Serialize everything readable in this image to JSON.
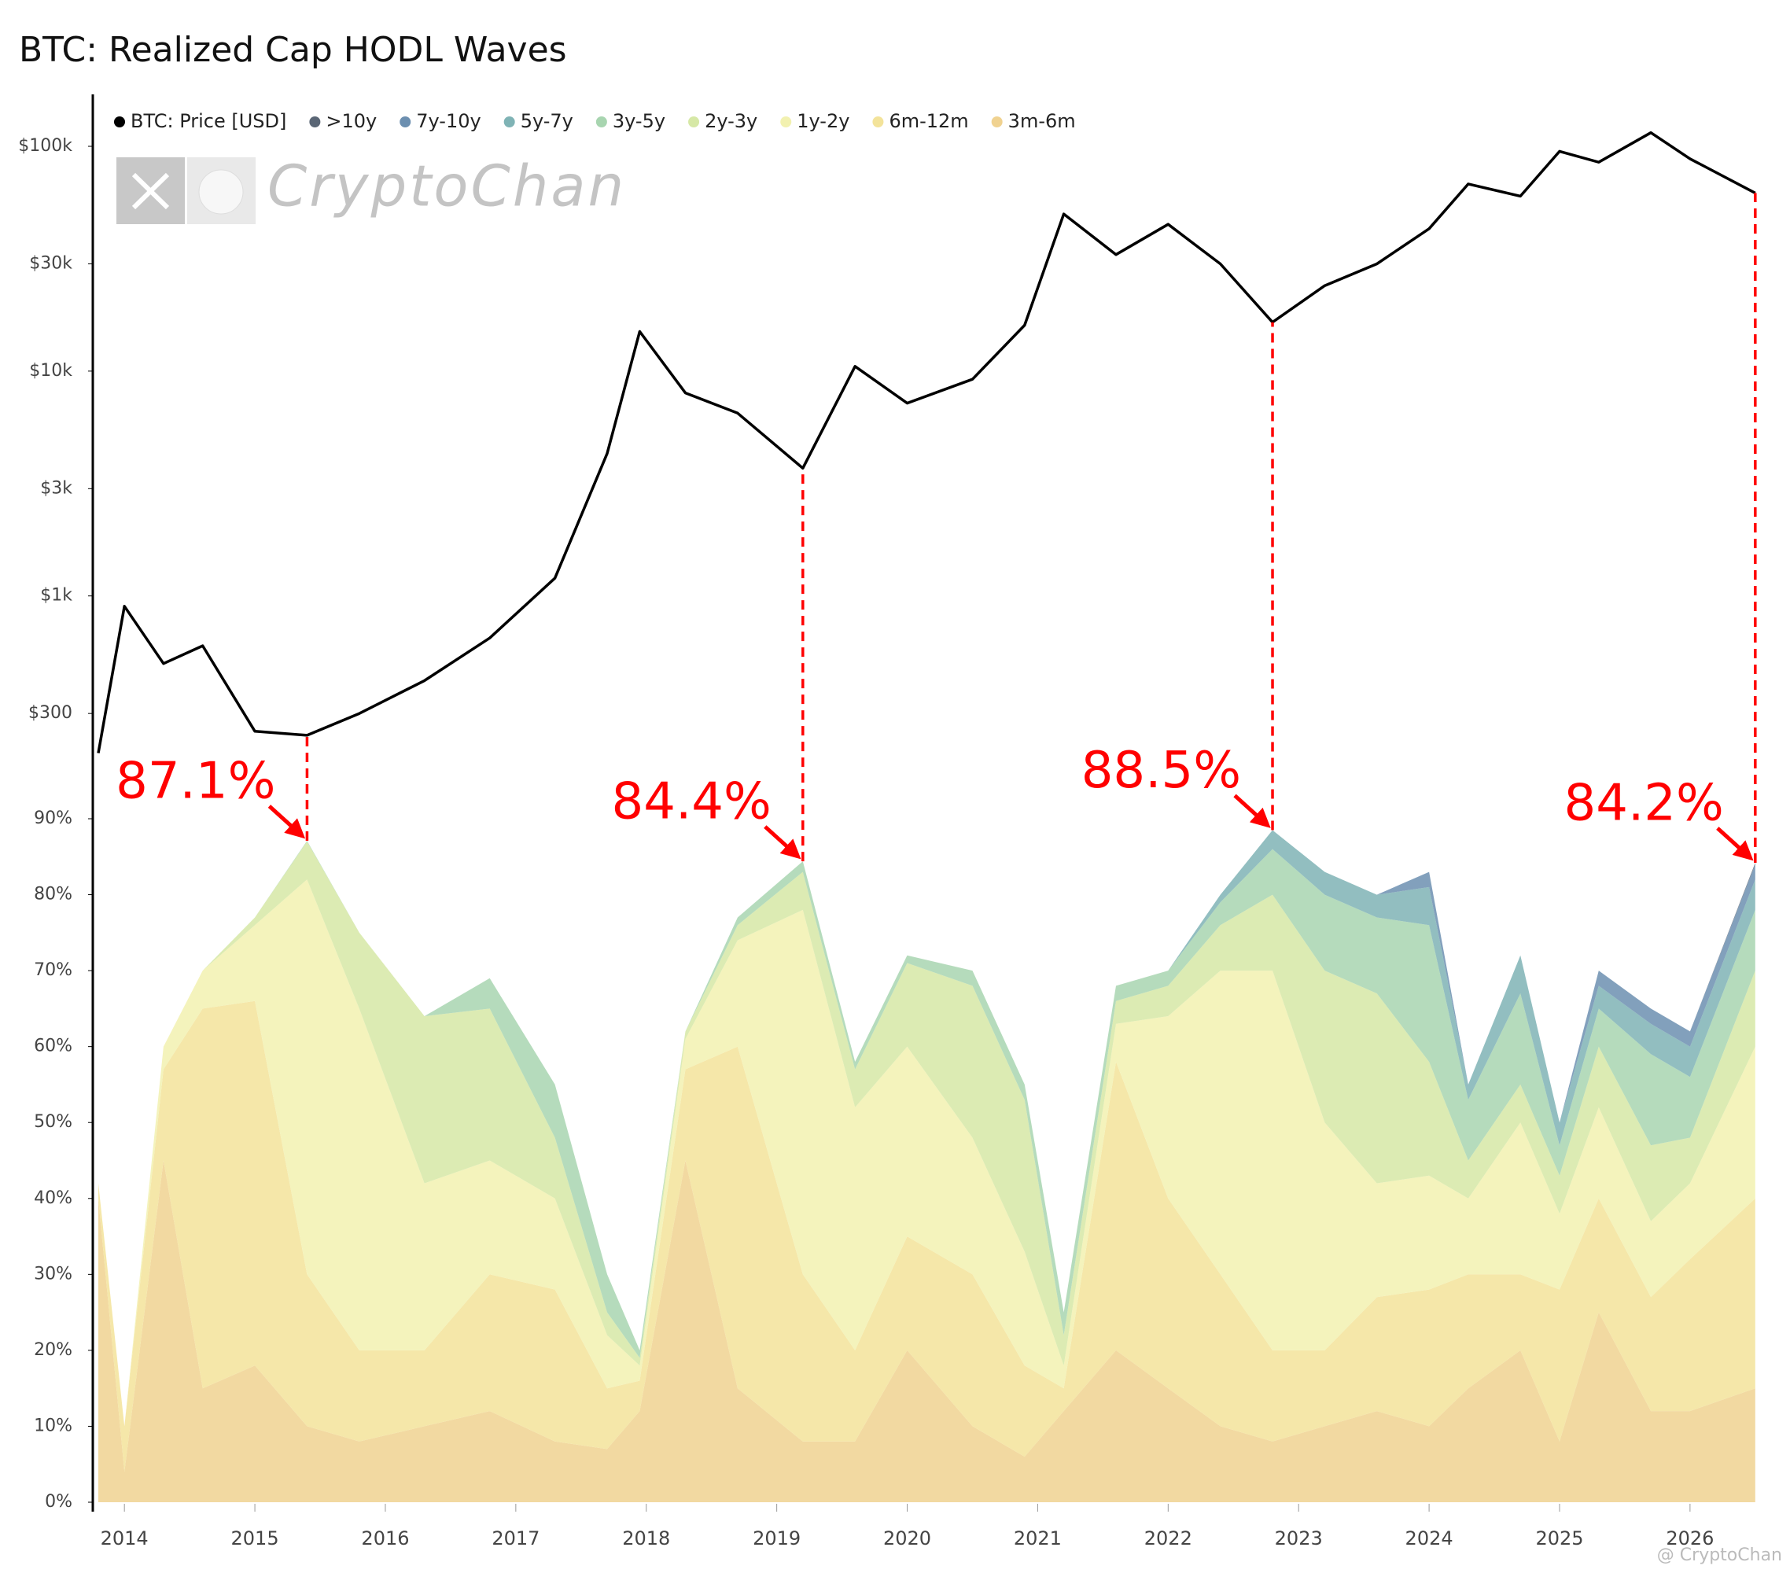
{
  "chart_data": {
    "type": "area",
    "stacked": true,
    "title": "BTC: Realized Cap HODL Waves",
    "watermark": "CryptoChan",
    "credit": "@ CryptoChan",
    "x": [
      2013.8,
      2014.0,
      2014.3,
      2014.6,
      2015.0,
      2015.4,
      2015.8,
      2016.3,
      2016.8,
      2017.3,
      2017.7,
      2017.95,
      2018.3,
      2018.7,
      2019.2,
      2019.6,
      2020.0,
      2020.5,
      2020.9,
      2021.2,
      2021.6,
      2022.0,
      2022.4,
      2022.8,
      2023.2,
      2023.6,
      2024.0,
      2024.3,
      2024.7,
      2025.0,
      2025.3,
      2025.7,
      2026.0,
      2026.5
    ],
    "xlim": [
      2013.8,
      2026.7
    ],
    "xticks": [
      2014,
      2015,
      2016,
      2017,
      2018,
      2019,
      2020,
      2021,
      2022,
      2023,
      2024,
      2025,
      2026
    ],
    "ylim": [
      0,
      90
    ],
    "yticks": [
      {
        "value": 0,
        "label": "0%"
      },
      {
        "value": 10,
        "label": "10%"
      },
      {
        "value": 20,
        "label": "20%"
      },
      {
        "value": 30,
        "label": "30%"
      },
      {
        "value": 40,
        "label": "40%"
      },
      {
        "value": 50,
        "label": "50%"
      },
      {
        "value": 60,
        "label": "60%"
      },
      {
        "value": 70,
        "label": "70%"
      },
      {
        "value": 80,
        "label": "80%"
      },
      {
        "value": 90,
        "label": "90%"
      }
    ],
    "y2lim": [
      196,
      163500
    ],
    "y2_log_scale": true,
    "y2ticks": [
      {
        "value": 300,
        "label": "$300"
      },
      {
        "value": 1000,
        "label": "$1k"
      },
      {
        "value": 3000,
        "label": "$3k"
      },
      {
        "value": 10000,
        "label": "$10k"
      },
      {
        "value": 30000,
        "label": "$30k"
      },
      {
        "value": 100000,
        "label": "$100k"
      }
    ],
    "grid": false,
    "series": [
      {
        "name": "BTC: Price [USD]",
        "color": "#000000",
        "axis": "y2",
        "values": [
          200,
          900,
          500,
          600,
          250,
          240,
          300,
          420,
          650,
          1200,
          4300,
          15000,
          8000,
          6500,
          3700,
          10500,
          7200,
          9200,
          16000,
          50000,
          33000,
          45000,
          30000,
          16500,
          24000,
          30000,
          43000,
          68000,
          60000,
          95000,
          85000,
          115000,
          88000,
          62000
        ]
      },
      {
        "name": ">10y",
        "color": "#5a6675",
        "values": [
          0,
          0,
          0,
          0,
          0,
          0,
          0,
          0,
          0,
          0,
          0,
          0,
          0,
          0,
          0,
          0,
          0,
          0,
          0,
          0,
          0,
          0,
          0,
          0,
          0,
          0,
          0,
          0,
          0,
          0,
          0,
          0,
          0,
          0.2
        ]
      },
      {
        "name": "7y-10y",
        "color": "#6c8fb0",
        "values": [
          0,
          0,
          0,
          0,
          0,
          0,
          0,
          0,
          0,
          0,
          0,
          0,
          0,
          0,
          0,
          0,
          0,
          0,
          0,
          0,
          0,
          0,
          0,
          0,
          0,
          0,
          2,
          0,
          0,
          0,
          2,
          2,
          2,
          2
        ]
      },
      {
        "name": "5y-7y",
        "color": "#7fb3b5",
        "values": [
          0,
          0,
          0,
          0,
          0,
          0,
          0,
          0,
          0,
          0,
          0,
          0,
          0,
          0,
          0,
          0,
          0,
          0,
          0,
          0,
          0,
          0,
          1,
          2.5,
          3,
          3,
          5,
          2,
          5,
          3,
          3,
          4,
          4,
          4
        ]
      },
      {
        "name": "3y-5y",
        "color": "#a8d5b0",
        "values": [
          0,
          0,
          0,
          0,
          0,
          0.1,
          0,
          0,
          4,
          7,
          5,
          1,
          0,
          1,
          1.4,
          1,
          1,
          2,
          2,
          3,
          2,
          2,
          3,
          6,
          10,
          10,
          18,
          8,
          12,
          4,
          5,
          12,
          8,
          8
        ]
      },
      {
        "name": "2y-3y",
        "color": "#d6e8a6",
        "values": [
          0,
          0,
          0,
          0,
          1,
          5,
          10,
          22,
          20,
          8,
          3,
          1,
          1,
          2,
          5,
          5,
          11,
          20,
          20,
          4,
          3,
          4,
          6,
          10,
          20,
          25,
          15,
          5,
          5,
          5,
          8,
          10,
          6,
          10
        ]
      },
      {
        "name": "1y-2y",
        "color": "#f2f1b0",
        "values": [
          0,
          0,
          3,
          5,
          10,
          52,
          45,
          22,
          15,
          12,
          7,
          2,
          4,
          14,
          48,
          32,
          25,
          18,
          15,
          3,
          5,
          24,
          40,
          50,
          30,
          15,
          15,
          10,
          20,
          10,
          12,
          10,
          10,
          20
        ]
      },
      {
        "name": "6m-12m",
        "color": "#f3e39a",
        "values": [
          2,
          6,
          12,
          50,
          48,
          20,
          12,
          10,
          18,
          20,
          8,
          4,
          12,
          45,
          22,
          12,
          15,
          20,
          12,
          3,
          38,
          25,
          20,
          12,
          10,
          15,
          18,
          15,
          10,
          20,
          15,
          15,
          20,
          25
        ]
      },
      {
        "name": "3m-6m",
        "color": "#f0d290",
        "values": [
          40,
          4,
          45,
          15,
          18,
          10,
          8,
          10,
          12,
          8,
          7,
          12,
          45,
          15,
          8,
          8,
          20,
          10,
          6,
          12,
          20,
          15,
          10,
          8,
          10,
          12,
          10,
          15,
          20,
          8,
          25,
          12,
          12,
          15
        ]
      }
    ],
    "annotations": [
      {
        "x": 2015.4,
        "value": 87.1,
        "label": "87.1%",
        "color": "#ff0000"
      },
      {
        "x": 2019.2,
        "value": 84.4,
        "label": "84.4%",
        "color": "#ff0000"
      },
      {
        "x": 2022.8,
        "value": 88.5,
        "label": "88.5%",
        "color": "#ff0000"
      },
      {
        "x": 2026.5,
        "value": 84.2,
        "label": "84.2%",
        "color": "#ff0000"
      }
    ]
  }
}
